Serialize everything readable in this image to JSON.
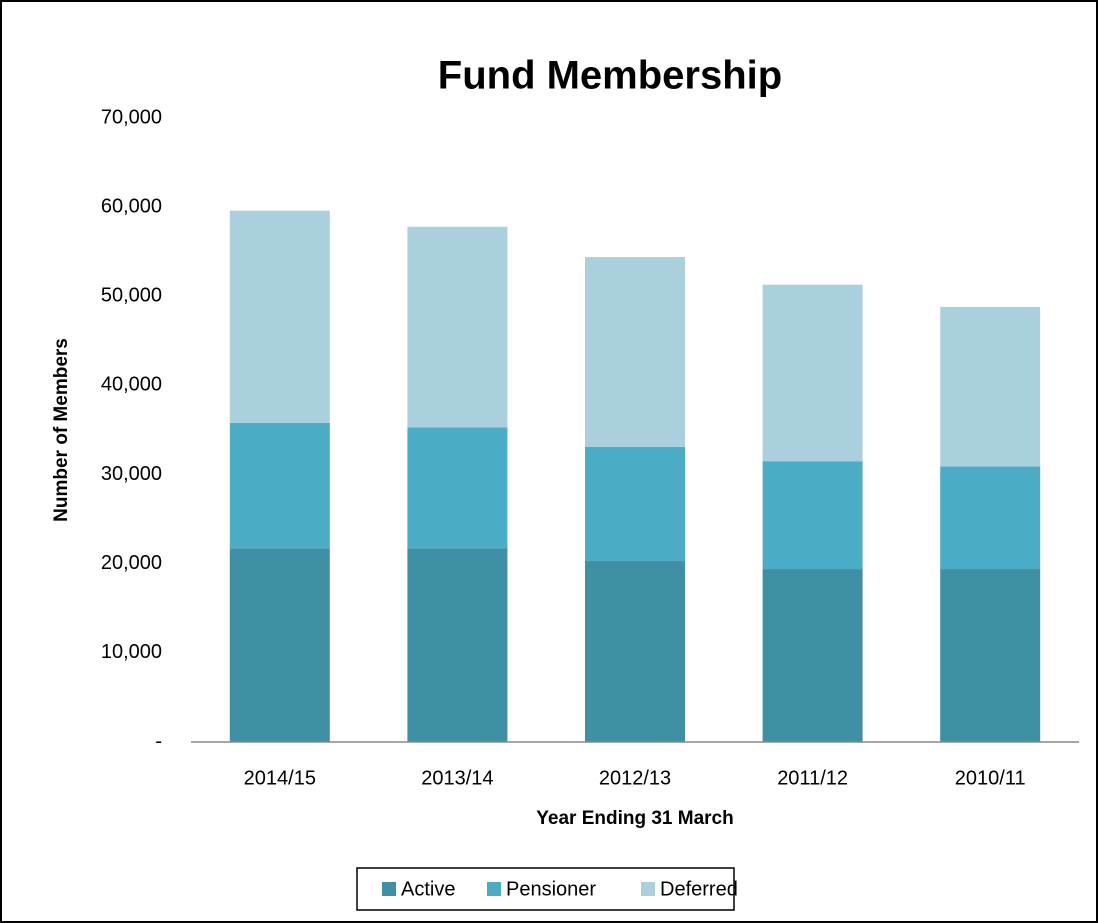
{
  "chart_data": {
    "type": "stacked_bar",
    "title": "Fund Membership",
    "x_label": "Year Ending  31 March",
    "y_label": "Number of Members",
    "categories": [
      "2014/15",
      "2013/14",
      "2012/13",
      "2011/12",
      "2010/11"
    ],
    "series": [
      {
        "name": "Active",
        "color": "#3f8fa5",
        "values": [
          21700,
          21700,
          20300,
          19400,
          19400
        ]
      },
      {
        "name": "Pensioner",
        "color": "#4bacc6",
        "values": [
          14100,
          13600,
          12800,
          12100,
          11500
        ]
      },
      {
        "name": "Deferred",
        "color": "#abd0dd",
        "values": [
          23800,
          22500,
          21300,
          19800,
          17900
        ]
      }
    ],
    "ylim": [
      0,
      70000
    ],
    "yticks": [
      {
        "value": 0,
        "label": "-"
      },
      {
        "value": 10000,
        "label": "10,000"
      },
      {
        "value": 20000,
        "label": "20,000"
      },
      {
        "value": 30000,
        "label": "30,000"
      },
      {
        "value": 40000,
        "label": "40,000"
      },
      {
        "value": 50000,
        "label": "50,000"
      },
      {
        "value": 60000,
        "label": "60,000"
      },
      {
        "value": 70000,
        "label": "70,000"
      }
    ],
    "grid": false,
    "legend": "bottom"
  }
}
